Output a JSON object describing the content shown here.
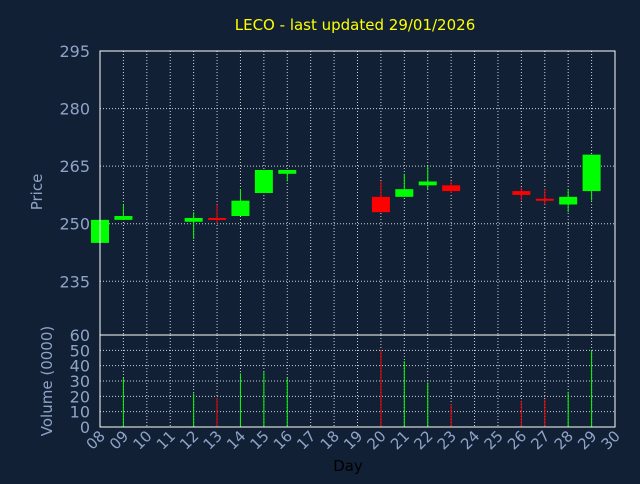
{
  "colors": {
    "background": "#112035",
    "plot_border": "#ffffff",
    "grid": "#ffffff",
    "title": "#ffff00",
    "axis_text": "#8fa3c6",
    "axis_label": "#8fa3c6",
    "up": "#00ff00",
    "down": "#ff0000"
  },
  "chart_data": [
    {
      "type": "candlestick",
      "title": "LECO - last updated 29/01/2026",
      "ylabel": "Price",
      "ylim": [
        221,
        295
      ],
      "yticks": [
        235,
        250,
        265,
        280,
        295
      ],
      "grid": true,
      "candles": [
        {
          "day": 8,
          "open": 245,
          "high": 251,
          "low": 245,
          "close": 251
        },
        {
          "day": 9,
          "open": 251,
          "high": 255,
          "low": 251,
          "close": 252
        },
        {
          "day": 12,
          "open": 250.5,
          "high": 253,
          "low": 246,
          "close": 251.5
        },
        {
          "day": 13,
          "open": 251.5,
          "high": 255,
          "low": 250,
          "close": 251
        },
        {
          "day": 14,
          "open": 252,
          "high": 259,
          "low": 252,
          "close": 256
        },
        {
          "day": 15,
          "open": 258,
          "high": 264,
          "low": 258,
          "close": 264
        },
        {
          "day": 16,
          "open": 263,
          "high": 264,
          "low": 261,
          "close": 264
        },
        {
          "day": 20,
          "open": 257,
          "high": 261,
          "low": 253,
          "close": 253
        },
        {
          "day": 21,
          "open": 257,
          "high": 263,
          "low": 257,
          "close": 259
        },
        {
          "day": 22,
          "open": 260,
          "high": 265,
          "low": 259,
          "close": 261
        },
        {
          "day": 23,
          "open": 260,
          "high": 261,
          "low": 258,
          "close": 258.5
        },
        {
          "day": 26,
          "open": 258.5,
          "high": 259.5,
          "low": 256,
          "close": 257.5
        },
        {
          "day": 27,
          "open": 256.5,
          "high": 259,
          "low": 255,
          "close": 256
        },
        {
          "day": 28,
          "open": 255,
          "high": 259,
          "low": 253,
          "close": 257
        },
        {
          "day": 29,
          "open": 258.5,
          "high": 268,
          "low": 256,
          "close": 268
        }
      ]
    },
    {
      "type": "bar",
      "ylabel": "Volume (0000)",
      "xlabel": "Day",
      "ylim": [
        0,
        60
      ],
      "yticks": [
        0,
        10,
        20,
        30,
        40,
        50,
        60
      ],
      "xlim": [
        8,
        30
      ],
      "xticks": [
        "08",
        "09",
        "10",
        "11",
        "12",
        "13",
        "14",
        "15",
        "16",
        "17",
        "18",
        "19",
        "20",
        "21",
        "22",
        "23",
        "24",
        "25",
        "26",
        "27",
        "28",
        "29",
        "30"
      ],
      "grid": true,
      "bars": [
        {
          "day": 9,
          "value": 32,
          "dir": "up"
        },
        {
          "day": 12,
          "value": 22,
          "dir": "up"
        },
        {
          "day": 13,
          "value": 19,
          "dir": "down"
        },
        {
          "day": 14,
          "value": 35,
          "dir": "up"
        },
        {
          "day": 15,
          "value": 36,
          "dir": "up"
        },
        {
          "day": 16,
          "value": 32,
          "dir": "up"
        },
        {
          "day": 20,
          "value": 50,
          "dir": "down"
        },
        {
          "day": 21,
          "value": 43,
          "dir": "up"
        },
        {
          "day": 22,
          "value": 29,
          "dir": "up"
        },
        {
          "day": 23,
          "value": 15,
          "dir": "down"
        },
        {
          "day": 26,
          "value": 17,
          "dir": "down"
        },
        {
          "day": 27,
          "value": 18,
          "dir": "down"
        },
        {
          "day": 28,
          "value": 23,
          "dir": "up"
        },
        {
          "day": 29,
          "value": 50,
          "dir": "up"
        }
      ]
    }
  ]
}
